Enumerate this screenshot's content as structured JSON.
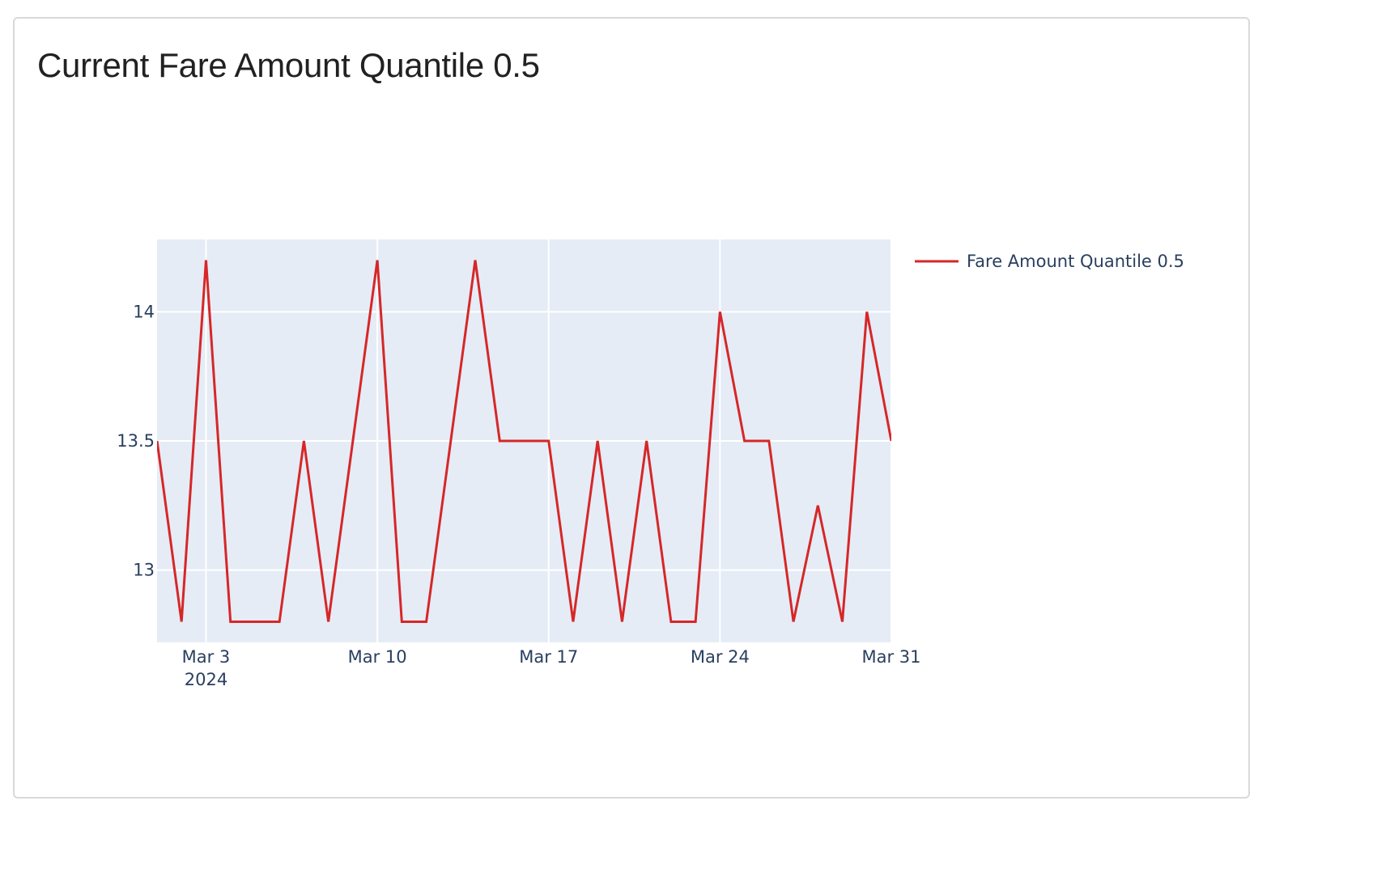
{
  "card": {
    "title": "Current Fare Amount Quantile 0.5"
  },
  "chart_data": {
    "type": "line",
    "title": "",
    "xlabel": "",
    "ylabel": "",
    "x_tick_labels": [
      {
        "date": "2024-03-03",
        "line1": "Mar 3",
        "line2": "2024"
      },
      {
        "date": "2024-03-10",
        "line1": "Mar 10",
        "line2": ""
      },
      {
        "date": "2024-03-17",
        "line1": "Mar 17",
        "line2": ""
      },
      {
        "date": "2024-03-24",
        "line1": "Mar 24",
        "line2": ""
      },
      {
        "date": "2024-03-31",
        "line1": "Mar 31",
        "line2": ""
      }
    ],
    "y_ticks": [
      13,
      13.5,
      14
    ],
    "y_tick_labels": [
      "13",
      "13.5",
      "14"
    ],
    "xlim": [
      "2024-03-01",
      "2024-03-31"
    ],
    "ylim": [
      12.72,
      14.28
    ],
    "grid": true,
    "legend_position": "top-right",
    "plot_background": "#e5ecf6",
    "grid_color": "#ffffff",
    "series": [
      {
        "name": "Fare Amount Quantile 0.5",
        "color": "#d62728",
        "x": [
          "2024-03-01",
          "2024-03-02",
          "2024-03-03",
          "2024-03-04",
          "2024-03-05",
          "2024-03-06",
          "2024-03-07",
          "2024-03-08",
          "2024-03-09",
          "2024-03-10",
          "2024-03-11",
          "2024-03-12",
          "2024-03-13",
          "2024-03-14",
          "2024-03-15",
          "2024-03-16",
          "2024-03-17",
          "2024-03-18",
          "2024-03-19",
          "2024-03-20",
          "2024-03-21",
          "2024-03-22",
          "2024-03-23",
          "2024-03-24",
          "2024-03-25",
          "2024-03-26",
          "2024-03-27",
          "2024-03-28",
          "2024-03-29",
          "2024-03-30",
          "2024-03-31"
        ],
        "y": [
          13.5,
          12.8,
          14.2,
          12.8,
          12.8,
          12.8,
          13.5,
          12.8,
          13.5,
          14.2,
          12.8,
          12.8,
          13.5,
          14.2,
          13.5,
          13.5,
          13.5,
          12.8,
          13.5,
          12.8,
          13.5,
          12.8,
          12.8,
          14.0,
          13.5,
          13.5,
          12.8,
          13.25,
          12.8,
          14.0,
          13.5
        ]
      }
    ]
  }
}
